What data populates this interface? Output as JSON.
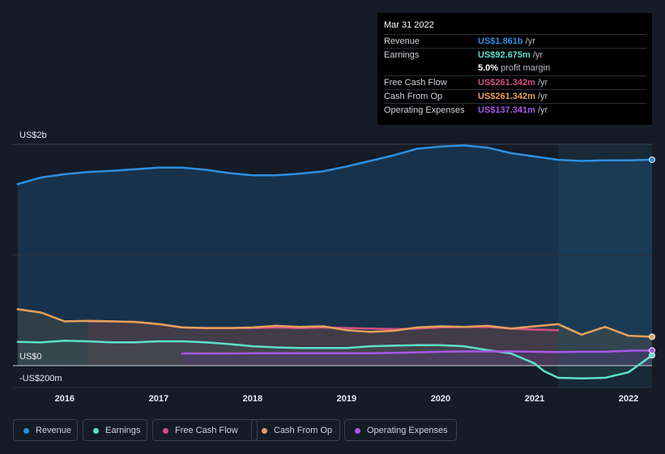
{
  "colors": {
    "revenue": "#2d8fe0",
    "earnings": "#5de0c8",
    "free_cash_flow": "#d44f86",
    "cash_from_op": "#e6a05c",
    "operating_expenses": "#a857e8",
    "background": "#151b27",
    "tooltip_bg": "#000000"
  },
  "tooltip": {
    "date": "Mar 31 2022",
    "rows": [
      {
        "label": "Revenue",
        "value": "US$1.861b",
        "unit": "/yr",
        "color": "#2d8fe0"
      },
      {
        "label": "Earnings",
        "value": "US$92.675m",
        "unit": "/yr",
        "color": "#5de0c8"
      },
      {
        "label": "",
        "value": "5.0%",
        "unit": "profit margin",
        "color": "#ffffff"
      },
      {
        "label": "Free Cash Flow",
        "value": "US$261.342m",
        "unit": "/yr",
        "color": "#d44f86"
      },
      {
        "label": "Cash From Op",
        "value": "US$261.342m",
        "unit": "/yr",
        "color": "#e6a05c"
      },
      {
        "label": "Operating Expenses",
        "value": "US$137.341m",
        "unit": "/yr",
        "color": "#a857e8"
      }
    ]
  },
  "legend": [
    {
      "label": "Revenue",
      "color": "#2d8fe0"
    },
    {
      "label": "Earnings",
      "color": "#5de0c8"
    },
    {
      "label": "Free Cash Flow",
      "color": "#d44f86"
    },
    {
      "label": "Cash From Op",
      "color": "#e6a05c"
    },
    {
      "label": "Operating Expenses",
      "color": "#a857e8"
    }
  ],
  "chart_data": {
    "type": "area",
    "y_tick_labels": [
      "US$2b",
      "US$0",
      "-US$200m"
    ],
    "y_ticks": [
      2000,
      0,
      -200
    ],
    "ylim": [
      -200,
      2000
    ],
    "xlim": [
      2015.45,
      2022.25
    ],
    "x_tick_labels": [
      "2016",
      "2017",
      "2018",
      "2019",
      "2020",
      "2021",
      "2022"
    ],
    "x_ticks": [
      2016,
      2017,
      2018,
      2019,
      2020,
      2021,
      2022
    ],
    "shaded_region_start": 2021.25,
    "series": [
      {
        "name": "Revenue",
        "key": "revenue",
        "x": [
          2015.5,
          2015.75,
          2016.0,
          2016.25,
          2016.5,
          2016.75,
          2017.0,
          2017.25,
          2017.5,
          2017.75,
          2018.0,
          2018.25,
          2018.5,
          2018.75,
          2019.0,
          2019.25,
          2019.5,
          2019.75,
          2020.0,
          2020.25,
          2020.5,
          2020.75,
          2021.0,
          2021.25,
          2021.5,
          2021.75,
          2022.0,
          2022.25
        ],
        "values": [
          1640,
          1700,
          1730,
          1750,
          1760,
          1775,
          1790,
          1790,
          1770,
          1740,
          1720,
          1720,
          1735,
          1755,
          1800,
          1850,
          1900,
          1960,
          1980,
          1990,
          1970,
          1920,
          1890,
          1860,
          1850,
          1855,
          1855,
          1861
        ]
      },
      {
        "name": "Earnings",
        "key": "earnings",
        "x": [
          2015.5,
          2015.75,
          2016.0,
          2016.25,
          2016.5,
          2016.75,
          2017.0,
          2017.25,
          2017.5,
          2017.75,
          2018.0,
          2018.25,
          2018.5,
          2018.75,
          2019.0,
          2019.25,
          2019.5,
          2019.75,
          2020.0,
          2020.25,
          2020.5,
          2020.75,
          2021.0,
          2021.1,
          2021.25,
          2021.5,
          2021.75,
          2022.0,
          2022.25
        ],
        "values": [
          215,
          210,
          225,
          220,
          210,
          210,
          220,
          220,
          210,
          195,
          175,
          165,
          160,
          160,
          160,
          175,
          180,
          185,
          185,
          175,
          140,
          110,
          20,
          -50,
          -110,
          -115,
          -110,
          -60,
          93
        ]
      },
      {
        "name": "Free Cash Flow",
        "key": "free_cash_flow",
        "x": [
          2016.25,
          2016.5,
          2016.75,
          2017.0,
          2017.25,
          2017.5,
          2017.75,
          2018.0,
          2018.25,
          2018.5,
          2018.75,
          2019.0,
          2019.25,
          2019.5,
          2019.75,
          2020.0,
          2020.25,
          2020.5,
          2020.75,
          2021.0,
          2021.25
        ],
        "values": [
          400,
          400,
          395,
          375,
          345,
          340,
          340,
          340,
          345,
          340,
          345,
          340,
          335,
          330,
          335,
          345,
          350,
          350,
          335,
          325,
          320
        ]
      },
      {
        "name": "Cash From Op",
        "key": "cash_from_op",
        "x": [
          2015.5,
          2015.75,
          2016.0,
          2016.25,
          2016.5,
          2016.75,
          2017.0,
          2017.25,
          2017.5,
          2017.75,
          2018.0,
          2018.25,
          2018.5,
          2018.75,
          2019.0,
          2019.25,
          2019.5,
          2019.75,
          2020.0,
          2020.25,
          2020.5,
          2020.75,
          2021.0,
          2021.25,
          2021.5,
          2021.75,
          2022.0,
          2022.25
        ],
        "values": [
          510,
          480,
          400,
          405,
          400,
          395,
          375,
          345,
          340,
          340,
          345,
          360,
          350,
          355,
          320,
          305,
          315,
          345,
          355,
          350,
          360,
          335,
          355,
          375,
          280,
          350,
          270,
          261
        ]
      },
      {
        "name": "Operating Expenses",
        "key": "operating_expenses",
        "x": [
          2017.25,
          2017.5,
          2017.75,
          2018.0,
          2018.25,
          2018.5,
          2018.75,
          2019.0,
          2019.25,
          2019.5,
          2019.75,
          2020.0,
          2020.25,
          2020.5,
          2020.75,
          2021.0,
          2021.25,
          2021.5,
          2021.75,
          2022.0,
          2022.25
        ],
        "values": [
          110,
          110,
          110,
          112,
          112,
          112,
          112,
          112,
          112,
          115,
          120,
          125,
          128,
          128,
          128,
          125,
          122,
          125,
          125,
          135,
          137
        ]
      }
    ]
  }
}
